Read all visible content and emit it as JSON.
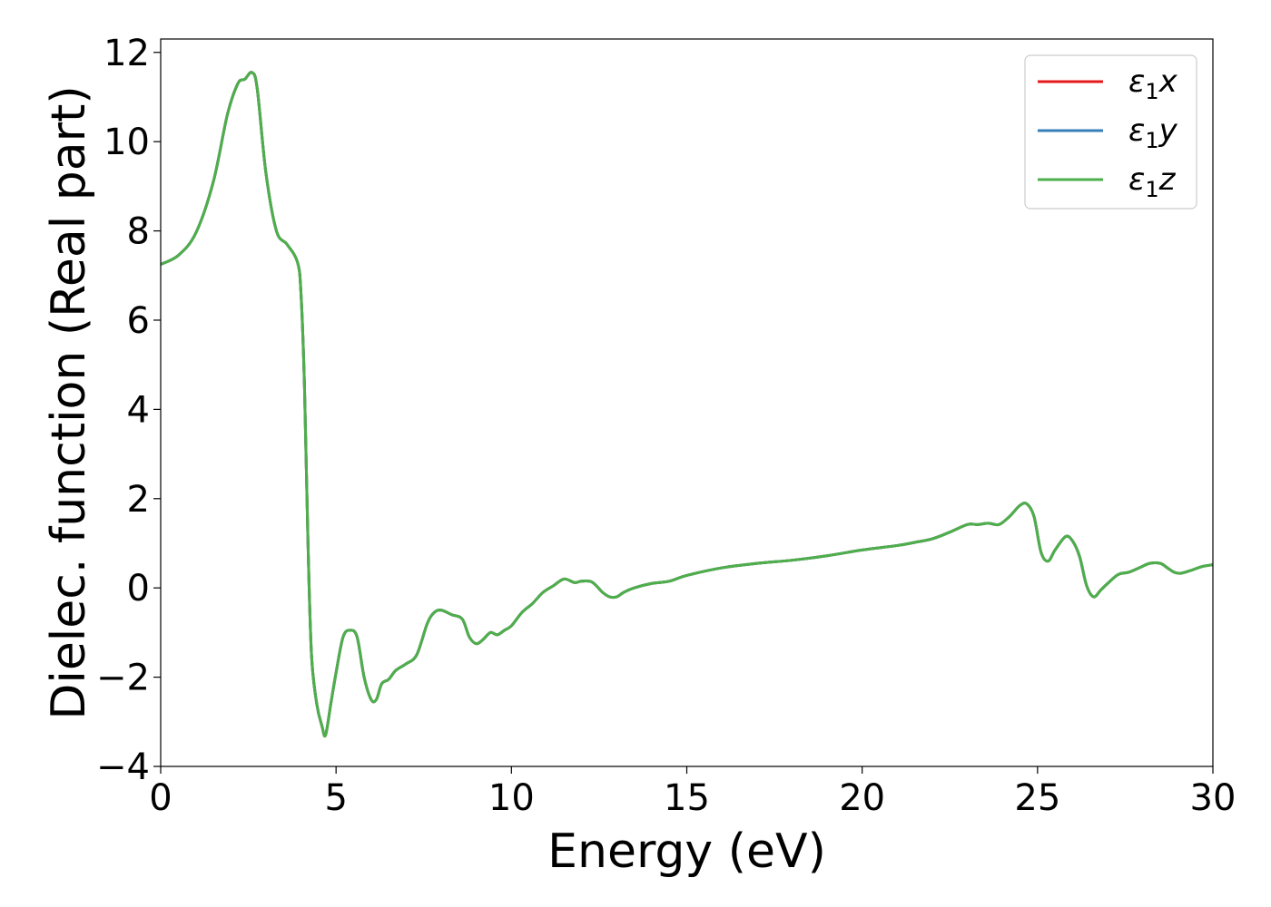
{
  "chart_data": {
    "type": "line",
    "xlabel": "Energy (eV)",
    "ylabel": "Dielec. function (Real part)",
    "xlim": [
      0,
      30
    ],
    "ylim": [
      -4,
      12.3
    ],
    "xticks": [
      0,
      5,
      10,
      15,
      20,
      25,
      30
    ],
    "yticks": [
      -4,
      -2,
      0,
      2,
      4,
      6,
      8,
      10,
      12
    ],
    "grid": false,
    "legend_position": "top-right",
    "colors": {
      "x": "#e41a1c",
      "y": "#377eb8",
      "z": "#4daf4a"
    },
    "x": [
      0,
      0.5,
      1.0,
      1.5,
      1.9,
      2.2,
      2.4,
      2.6,
      2.75,
      3.0,
      3.3,
      3.6,
      3.9,
      4.0,
      4.1,
      4.2,
      4.3,
      4.45,
      4.6,
      4.7,
      4.85,
      5.0,
      5.2,
      5.4,
      5.6,
      5.8,
      6.0,
      6.15,
      6.3,
      6.5,
      6.7,
      7.0,
      7.3,
      7.6,
      7.8,
      8.0,
      8.3,
      8.6,
      8.8,
      9.0,
      9.2,
      9.4,
      9.6,
      9.8,
      10.0,
      10.3,
      10.6,
      10.9,
      11.2,
      11.5,
      11.8,
      12.0,
      12.3,
      12.6,
      12.8,
      13.0,
      13.2,
      13.5,
      14.0,
      14.5,
      15.0,
      16.0,
      17.0,
      18.0,
      19.0,
      20.0,
      21.0,
      21.5,
      22.0,
      22.5,
      23.0,
      23.3,
      23.6,
      23.9,
      24.2,
      24.5,
      24.7,
      24.9,
      25.1,
      25.3,
      25.5,
      25.8,
      26.0,
      26.2,
      26.4,
      26.6,
      26.8,
      27.0,
      27.3,
      27.6,
      27.9,
      28.2,
      28.5,
      28.7,
      28.9,
      29.1,
      29.4,
      29.7,
      30.0
    ],
    "series": [
      {
        "name": "ε1x",
        "color_key": "x",
        "values": [
          7.25,
          7.45,
          7.95,
          9.1,
          10.6,
          11.3,
          11.4,
          11.55,
          11.2,
          9.3,
          8.0,
          7.7,
          7.3,
          6.6,
          4.5,
          1.0,
          -1.5,
          -2.6,
          -3.1,
          -3.3,
          -2.6,
          -1.9,
          -1.1,
          -0.95,
          -1.1,
          -2.0,
          -2.5,
          -2.5,
          -2.15,
          -2.05,
          -1.85,
          -1.7,
          -1.5,
          -0.8,
          -0.55,
          -0.5,
          -0.6,
          -0.7,
          -1.1,
          -1.25,
          -1.15,
          -1.0,
          -1.05,
          -0.95,
          -0.85,
          -0.55,
          -0.35,
          -0.1,
          0.05,
          0.2,
          0.12,
          0.15,
          0.13,
          -0.1,
          -0.2,
          -0.2,
          -0.1,
          0.0,
          0.1,
          0.15,
          0.28,
          0.45,
          0.55,
          0.62,
          0.72,
          0.85,
          0.95,
          1.02,
          1.1,
          1.25,
          1.42,
          1.42,
          1.45,
          1.42,
          1.6,
          1.85,
          1.88,
          1.6,
          0.8,
          0.6,
          0.85,
          1.15,
          1.05,
          0.7,
          0.05,
          -0.2,
          -0.05,
          0.1,
          0.3,
          0.35,
          0.45,
          0.55,
          0.55,
          0.45,
          0.35,
          0.33,
          0.4,
          0.48,
          0.52
        ]
      },
      {
        "name": "ε1y",
        "color_key": "y",
        "values": [
          7.25,
          7.45,
          7.95,
          9.1,
          10.6,
          11.3,
          11.4,
          11.55,
          11.2,
          9.3,
          8.0,
          7.7,
          7.3,
          6.6,
          4.5,
          1.0,
          -1.5,
          -2.6,
          -3.1,
          -3.3,
          -2.6,
          -1.9,
          -1.1,
          -0.95,
          -1.1,
          -2.0,
          -2.5,
          -2.5,
          -2.15,
          -2.05,
          -1.85,
          -1.7,
          -1.5,
          -0.8,
          -0.55,
          -0.5,
          -0.6,
          -0.7,
          -1.1,
          -1.25,
          -1.15,
          -1.0,
          -1.05,
          -0.95,
          -0.85,
          -0.55,
          -0.35,
          -0.1,
          0.05,
          0.2,
          0.12,
          0.15,
          0.13,
          -0.1,
          -0.2,
          -0.2,
          -0.1,
          0.0,
          0.1,
          0.15,
          0.28,
          0.45,
          0.55,
          0.62,
          0.72,
          0.85,
          0.95,
          1.02,
          1.1,
          1.25,
          1.42,
          1.42,
          1.45,
          1.42,
          1.6,
          1.85,
          1.88,
          1.6,
          0.8,
          0.6,
          0.85,
          1.15,
          1.05,
          0.7,
          0.05,
          -0.2,
          -0.05,
          0.1,
          0.3,
          0.35,
          0.45,
          0.55,
          0.55,
          0.45,
          0.35,
          0.33,
          0.4,
          0.48,
          0.52
        ]
      },
      {
        "name": "ε1z",
        "color_key": "z",
        "values": [
          7.25,
          7.45,
          7.95,
          9.1,
          10.6,
          11.3,
          11.4,
          11.55,
          11.2,
          9.3,
          8.0,
          7.7,
          7.3,
          6.6,
          4.5,
          1.0,
          -1.5,
          -2.6,
          -3.1,
          -3.3,
          -2.6,
          -1.9,
          -1.1,
          -0.95,
          -1.1,
          -2.0,
          -2.5,
          -2.5,
          -2.15,
          -2.05,
          -1.85,
          -1.7,
          -1.5,
          -0.8,
          -0.55,
          -0.5,
          -0.6,
          -0.7,
          -1.1,
          -1.25,
          -1.15,
          -1.0,
          -1.05,
          -0.95,
          -0.85,
          -0.55,
          -0.35,
          -0.1,
          0.05,
          0.2,
          0.12,
          0.15,
          0.13,
          -0.1,
          -0.2,
          -0.2,
          -0.1,
          0.0,
          0.1,
          0.15,
          0.28,
          0.45,
          0.55,
          0.62,
          0.72,
          0.85,
          0.95,
          1.02,
          1.1,
          1.25,
          1.42,
          1.42,
          1.45,
          1.42,
          1.6,
          1.85,
          1.88,
          1.6,
          0.8,
          0.6,
          0.85,
          1.15,
          1.05,
          0.7,
          0.05,
          -0.2,
          -0.05,
          0.1,
          0.3,
          0.35,
          0.45,
          0.55,
          0.55,
          0.45,
          0.35,
          0.33,
          0.4,
          0.48,
          0.52
        ]
      }
    ],
    "legend": [
      {
        "symbol": "ε",
        "sub": "1",
        "var": "x",
        "color_key": "x"
      },
      {
        "symbol": "ε",
        "sub": "1",
        "var": "y",
        "color_key": "y"
      },
      {
        "symbol": "ε",
        "sub": "1",
        "var": "z",
        "color_key": "z"
      }
    ]
  }
}
